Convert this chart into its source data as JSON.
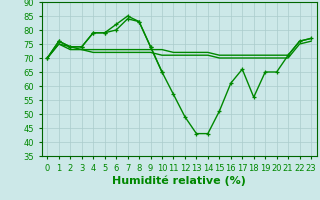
{
  "title": "",
  "xlabel": "Humidité relative (%)",
  "ylabel": "",
  "background_color": "#cce8e8",
  "grid_color": "#aacccc",
  "line_color": "#008800",
  "ylim": [
    35,
    90
  ],
  "xlim": [
    -0.5,
    23.5
  ],
  "yticks": [
    35,
    40,
    45,
    50,
    55,
    60,
    65,
    70,
    75,
    80,
    85,
    90
  ],
  "xticks": [
    0,
    1,
    2,
    3,
    4,
    5,
    6,
    7,
    8,
    9,
    10,
    11,
    12,
    13,
    14,
    15,
    16,
    17,
    18,
    19,
    20,
    21,
    22,
    23
  ],
  "line1_x": [
    0,
    1,
    2,
    3,
    4,
    5,
    6,
    7,
    8,
    9,
    10,
    11,
    12,
    13,
    14,
    15,
    16,
    17,
    18,
    19,
    20,
    21,
    22,
    23
  ],
  "line1_y": [
    70,
    76,
    74,
    74,
    79,
    79,
    80,
    84,
    83,
    74,
    65,
    57,
    49,
    43,
    43,
    51,
    61,
    66,
    56,
    65,
    65,
    71,
    76,
    77
  ],
  "line2_x": [
    0,
    1,
    2,
    3,
    4,
    5,
    6,
    7,
    8,
    9,
    10
  ],
  "line2_y": [
    70,
    76,
    74,
    74,
    79,
    79,
    82,
    85,
    83,
    74,
    65
  ],
  "line3_x": [
    0,
    1,
    2,
    3,
    4,
    5,
    6,
    7,
    8,
    9,
    10,
    11,
    12,
    13,
    14,
    15,
    16,
    17,
    18,
    19,
    20,
    21,
    22,
    23
  ],
  "line3_y": [
    70,
    75,
    74,
    73,
    73,
    73,
    73,
    73,
    73,
    73,
    73,
    72,
    72,
    72,
    72,
    71,
    71,
    71,
    71,
    71,
    71,
    71,
    76,
    77
  ],
  "line4_x": [
    0,
    1,
    2,
    3,
    4,
    5,
    6,
    7,
    8,
    9,
    10,
    11,
    12,
    13,
    14,
    15,
    16,
    17,
    18,
    19,
    20,
    21,
    22,
    23
  ],
  "line4_y": [
    70,
    75,
    73,
    73,
    72,
    72,
    72,
    72,
    72,
    72,
    71,
    71,
    71,
    71,
    71,
    70,
    70,
    70,
    70,
    70,
    70,
    70,
    75,
    76
  ],
  "xlabel_fontsize": 8,
  "tick_fontsize": 6,
  "linewidth": 1.0,
  "marker_size": 3.5
}
